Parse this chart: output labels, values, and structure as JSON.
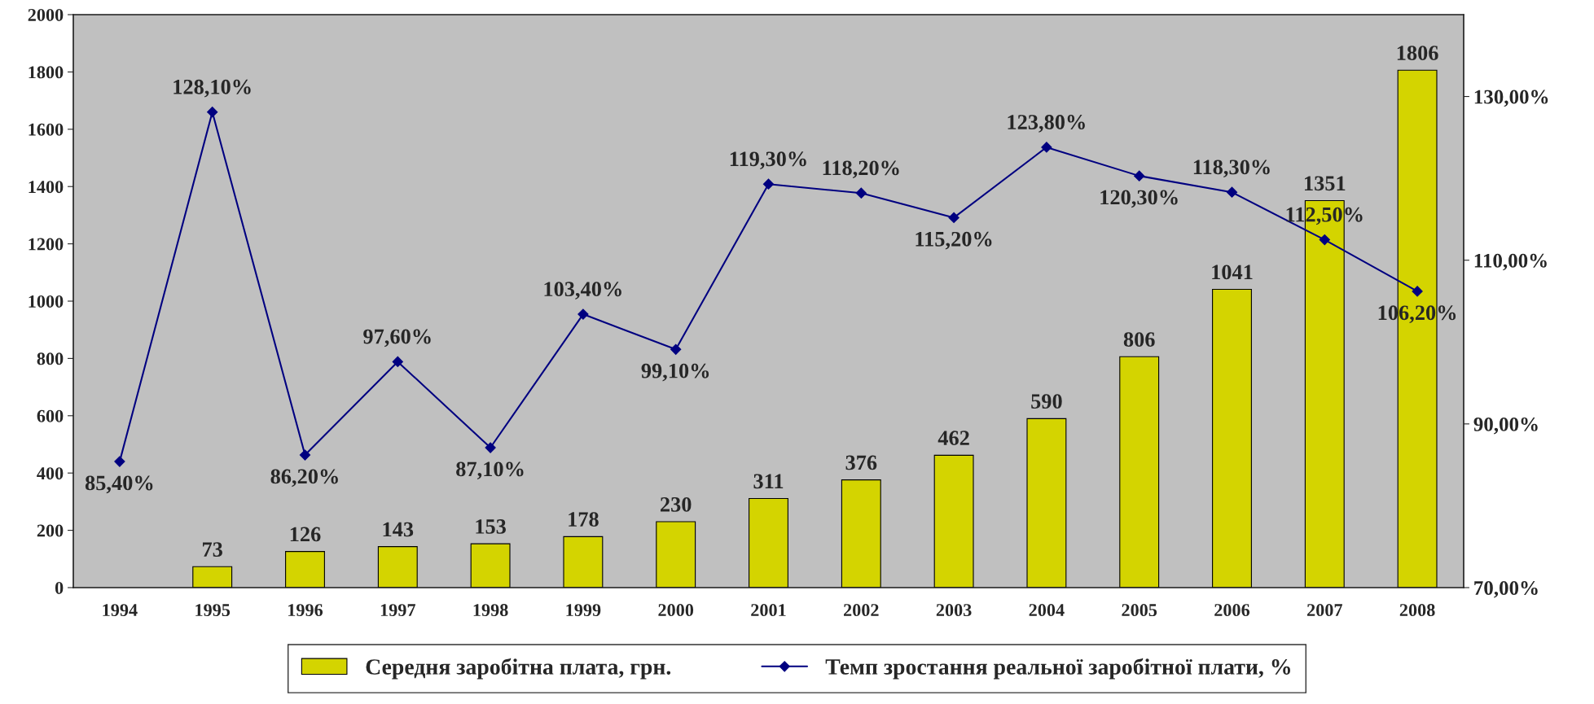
{
  "chart_data": {
    "type": "bar",
    "categories": [
      "1994",
      "1995",
      "1996",
      "1997",
      "1998",
      "1999",
      "2000",
      "2001",
      "2002",
      "2003",
      "2004",
      "2005",
      "2006",
      "2007",
      "2008"
    ],
    "series": [
      {
        "name": "Середня заробітна плата, грн.",
        "color": "#d4d400",
        "values": [
          null,
          73,
          126,
          143,
          153,
          178,
          230,
          311,
          376,
          462,
          590,
          806,
          1041,
          1351,
          1806
        ],
        "value_labels": [
          null,
          "73",
          "126",
          "143",
          "153",
          "178",
          "230",
          "311",
          "376",
          "462",
          "590",
          "806",
          "1041",
          "1351",
          "1806"
        ]
      },
      {
        "name": "Темп зростання реальної заробітної плати, %",
        "type": "line",
        "axis": "y2",
        "color": "#000080",
        "marker": "diamond",
        "values": [
          85.4,
          128.1,
          86.2,
          97.6,
          87.1,
          103.4,
          99.1,
          119.3,
          118.2,
          115.2,
          123.8,
          120.3,
          118.3,
          112.5,
          106.2
        ],
        "value_labels": [
          "85,40%",
          "128,10%",
          "86,20%",
          "97,60%",
          "87,10%",
          "103,40%",
          "99,10%",
          "119,30%",
          "118,20%",
          "115,20%",
          "123,80%",
          "120,30%",
          "118,30%",
          "112,50%",
          "106,20%"
        ]
      }
    ],
    "ylim": [
      0,
      2000
    ],
    "yticks": [
      0,
      200,
      400,
      600,
      800,
      1000,
      1200,
      1400,
      1600,
      1800,
      2000
    ],
    "y2lim": [
      70,
      140
    ],
    "y2ticks": [
      {
        "value": 70,
        "label": "70,00%"
      },
      {
        "value": 90,
        "label": "90,00%"
      },
      {
        "value": 110,
        "label": "110,00%"
      },
      {
        "value": 130,
        "label": "130,00%"
      }
    ],
    "grid": false,
    "legend": "bottom"
  }
}
